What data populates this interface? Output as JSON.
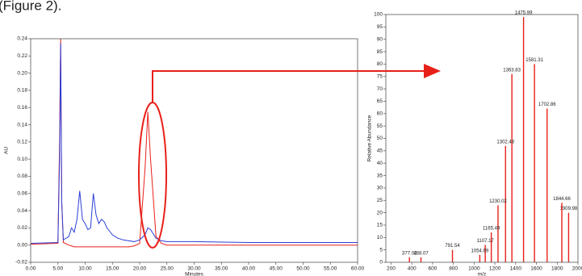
{
  "caption": "(Figure 2).",
  "chart_data": [
    {
      "type": "line",
      "x_label": "Minutes",
      "y_label": "AU",
      "x": [
        0,
        5,
        5.3,
        5.5,
        5.7,
        6,
        7,
        7.5,
        8,
        8.5,
        9,
        9.5,
        10,
        10.5,
        11,
        11.5,
        12,
        12.5,
        13,
        13.5,
        14,
        15,
        16,
        17,
        18,
        19,
        20,
        21,
        21.5,
        22,
        23,
        24,
        25,
        30,
        40,
        50,
        60
      ],
      "series": [
        {
          "color": "#2b3fd8",
          "values": [
            0.002,
            0.003,
            0.1,
            0.235,
            0.05,
            0.006,
            0.01,
            0.02,
            0.015,
            0.03,
            0.063,
            0.03,
            0.025,
            0.018,
            0.02,
            0.06,
            0.035,
            0.025,
            0.03,
            0.027,
            0.02,
            0.012,
            0.008,
            0.006,
            0.005,
            0.004,
            0.006,
            0.012,
            0.02,
            0.018,
            0.008,
            0.005,
            0.004,
            0.004,
            0.003,
            0.003,
            0.003
          ]
        },
        {
          "color": "#e8201a",
          "values": [
            0.001,
            0.002,
            0.12,
            0.24,
            0.05,
            0.003,
            0.0,
            -0.001,
            -0.002,
            -0.002,
            -0.002,
            -0.002,
            -0.002,
            -0.002,
            -0.002,
            -0.002,
            -0.002,
            -0.002,
            -0.002,
            -0.002,
            -0.002,
            -0.002,
            -0.002,
            -0.002,
            -0.002,
            -0.001,
            0.002,
            0.09,
            0.155,
            0.1,
            0.01,
            0.002,
            0.0,
            0.0,
            0.0,
            0.0,
            0.0
          ]
        }
      ],
      "xlim": [
        0,
        60
      ],
      "xticks": [
        {
          "value": 0,
          "label": "0.00"
        },
        {
          "value": 5,
          "label": "5.00"
        },
        {
          "value": 10,
          "label": "10.00"
        },
        {
          "value": 15,
          "label": "15.00"
        },
        {
          "value": 20,
          "label": "20.00"
        },
        {
          "value": 25,
          "label": "25.00"
        },
        {
          "value": 30,
          "label": "30.00"
        },
        {
          "value": 35,
          "label": "35.00"
        },
        {
          "value": 40,
          "label": "40.00"
        },
        {
          "value": 45,
          "label": "45.00"
        },
        {
          "value": 50,
          "label": "50.00"
        },
        {
          "value": 55,
          "label": "55.00"
        },
        {
          "value": 60,
          "label": "60.00"
        }
      ],
      "ylim": [
        -0.02,
        0.24
      ],
      "yticks": [
        -0.02,
        {
          "value": 0,
          "label": "0.00"
        },
        0.02,
        0.04,
        0.06,
        0.08,
        {
          "value": 0.1,
          "label": "0.10"
        },
        0.12,
        0.14,
        0.16,
        0.18,
        {
          "value": 0.2,
          "label": "0.20"
        },
        0.22,
        0.24
      ]
    },
    {
      "type": "spectrum",
      "x_label": "m/z",
      "y_label": "Relative Abundance",
      "color": "#e8201a",
      "x": [
        377.02,
        488.07,
        791.54,
        1054.69,
        1107.17,
        1165.49,
        1230.02,
        1302.48,
        1363.83,
        1475.99,
        1581.31,
        1702.86,
        1844.66,
        1909.98
      ],
      "values": [
        2,
        2,
        5,
        3,
        7,
        12,
        23,
        47,
        76,
        99,
        80,
        62,
        24,
        20
      ],
      "xlim": [
        150,
        2000
      ],
      "xticks": [
        200,
        400,
        600,
        800,
        1000,
        1200,
        1400,
        1600,
        1800,
        2000
      ],
      "ylim": [
        0,
        100
      ],
      "yticks": [
        0,
        5,
        10,
        15,
        20,
        25,
        30,
        35,
        40,
        45,
        50,
        55,
        60,
        65,
        70,
        75,
        80,
        85,
        90,
        95,
        100
      ]
    }
  ]
}
